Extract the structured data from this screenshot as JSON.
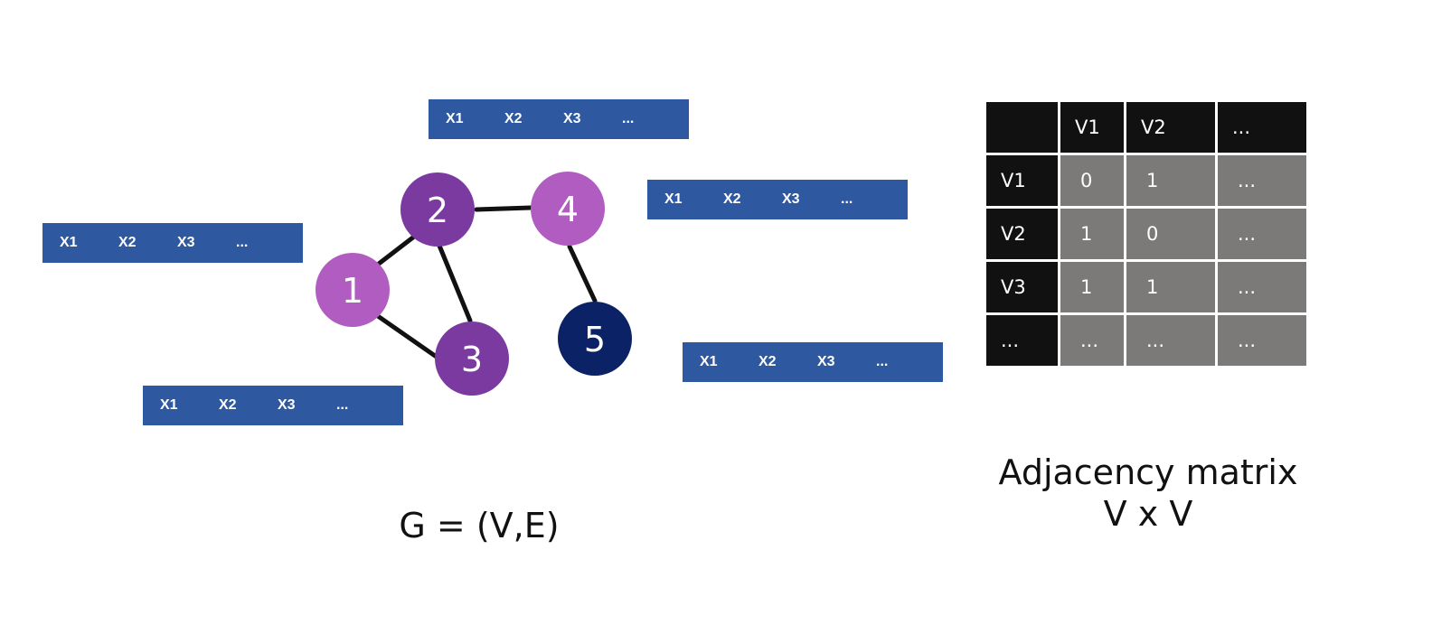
{
  "feature_bars": [
    {
      "id": "top",
      "items": [
        "X1",
        "X2",
        "X3",
        "..."
      ]
    },
    {
      "id": "right-upper",
      "items": [
        "X1",
        "X2",
        "X3",
        "..."
      ]
    },
    {
      "id": "left",
      "items": [
        "X1",
        "X2",
        "X3",
        "..."
      ]
    },
    {
      "id": "bottom-left",
      "items": [
        "X1",
        "X2",
        "X3",
        "..."
      ]
    },
    {
      "id": "right-lower",
      "items": [
        "X1",
        "X2",
        "X3",
        "..."
      ]
    }
  ],
  "graph": {
    "nodes": [
      {
        "id": "1",
        "label": "1",
        "color": "#b05cc0"
      },
      {
        "id": "2",
        "label": "2",
        "color": "#7a3aa0"
      },
      {
        "id": "3",
        "label": "3",
        "color": "#7a3aa0"
      },
      {
        "id": "4",
        "label": "4",
        "color": "#b05cc0"
      },
      {
        "id": "5",
        "label": "5",
        "color": "#0b2266"
      }
    ],
    "edges": [
      [
        "1",
        "2"
      ],
      [
        "1",
        "3"
      ],
      [
        "2",
        "3"
      ],
      [
        "2",
        "4"
      ],
      [
        "4",
        "5"
      ]
    ],
    "caption": "G = (V,E)"
  },
  "matrix": {
    "col_headers": [
      "",
      "V1",
      "V2",
      "..."
    ],
    "rows": [
      {
        "header": "V1",
        "cells": [
          "0",
          "1",
          "..."
        ]
      },
      {
        "header": "V2",
        "cells": [
          "1",
          "0",
          "..."
        ]
      },
      {
        "header": "V3",
        "cells": [
          "1",
          "1",
          "..."
        ]
      },
      {
        "header": "...",
        "cells": [
          "...",
          "...",
          "..."
        ]
      }
    ],
    "caption_line1": "Adjacency matrix",
    "caption_line2": "V x V"
  },
  "colors": {
    "feature_bar": "#2e58a0",
    "matrix_header": "#111111",
    "matrix_cell": "#7c7a79",
    "edge": "#111111"
  }
}
